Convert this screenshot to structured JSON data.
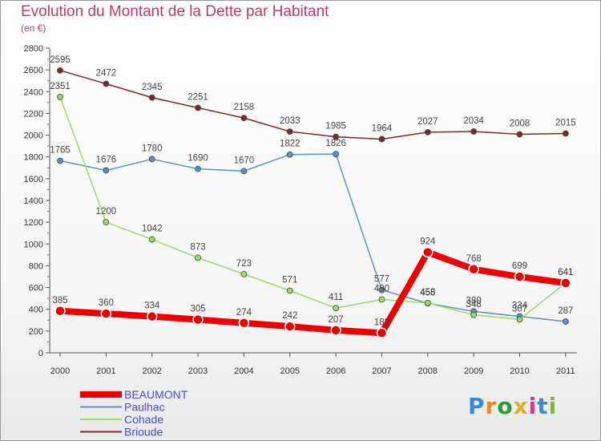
{
  "title": "Evolution du Montant de la Dette par Habitant",
  "subtitle": "(en €)",
  "logo": {
    "text": "Proxiti",
    "colors": [
      "#3b8ad9",
      "#e98a1c",
      "#2a9a3a",
      "#e0b21a",
      "#d43c8a",
      "#3b8ad9",
      "#7fb92a"
    ]
  },
  "chart_data": {
    "type": "line",
    "x": [
      "2000",
      "2001",
      "2002",
      "2003",
      "2004",
      "2005",
      "2006",
      "2007",
      "2008",
      "2009",
      "2010",
      "2011"
    ],
    "ylim": [
      0,
      2800
    ],
    "yticks": [
      0,
      200,
      400,
      600,
      800,
      1000,
      1200,
      1400,
      1600,
      1800,
      2000,
      2200,
      2400,
      2600,
      2800
    ],
    "grid": false,
    "legend_position": "bottom-left",
    "series": [
      {
        "name": "BEAUMONT",
        "color": "#ee0000",
        "values": [
          385,
          360,
          334,
          305,
          274,
          242,
          207,
          182,
          924,
          768,
          699,
          641
        ]
      },
      {
        "name": "Paulhac",
        "color": "#5b93c8",
        "values": [
          1765,
          1676,
          1780,
          1690,
          1670,
          1822,
          1826,
          577,
          455,
          380,
          334,
          287
        ]
      },
      {
        "name": "Cohade",
        "color": "#99dd66",
        "values": [
          2351,
          1200,
          1042,
          873,
          723,
          571,
          411,
          490,
          458,
          348,
          307,
          641
        ]
      },
      {
        "name": "Brioude",
        "color": "#7b2a2a",
        "values": [
          2595,
          2472,
          2345,
          2251,
          2158,
          2033,
          1985,
          1964,
          2027,
          2034,
          2008,
          2015
        ]
      }
    ]
  }
}
